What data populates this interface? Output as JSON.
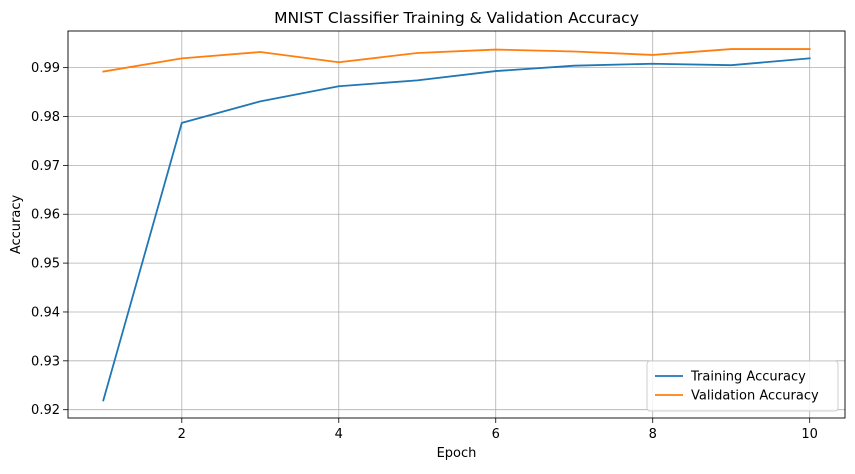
{
  "chart_data": {
    "type": "line",
    "title": "MNIST Classifier Training & Validation Accuracy",
    "xlabel": "Epoch",
    "ylabel": "Accuracy",
    "x": [
      1,
      2,
      3,
      4,
      5,
      6,
      7,
      8,
      9,
      10
    ],
    "xlim": [
      0.55,
      10.45
    ],
    "ylim": [
      0.9183,
      0.9975
    ],
    "xticks": [
      2,
      4,
      6,
      8,
      10
    ],
    "xtick_labels": [
      "2",
      "4",
      "6",
      "8",
      "10"
    ],
    "yticks": [
      0.92,
      0.93,
      0.94,
      0.95,
      0.96,
      0.97,
      0.98,
      0.99
    ],
    "ytick_labels": [
      "0.92",
      "0.93",
      "0.94",
      "0.95",
      "0.96",
      "0.97",
      "0.98",
      "0.99"
    ],
    "grid": true,
    "legend_position": "bottom-right",
    "series": [
      {
        "name": "Training Accuracy",
        "color": "#1f77b4",
        "values": [
          0.9219,
          0.9787,
          0.9831,
          0.9862,
          0.9874,
          0.9893,
          0.9904,
          0.9908,
          0.9905,
          0.9919
        ]
      },
      {
        "name": "Validation Accuracy",
        "color": "#ff7f0e",
        "values": [
          0.9892,
          0.9919,
          0.9932,
          0.9911,
          0.993,
          0.9937,
          0.9933,
          0.9926,
          0.9938,
          0.9938
        ]
      }
    ]
  }
}
